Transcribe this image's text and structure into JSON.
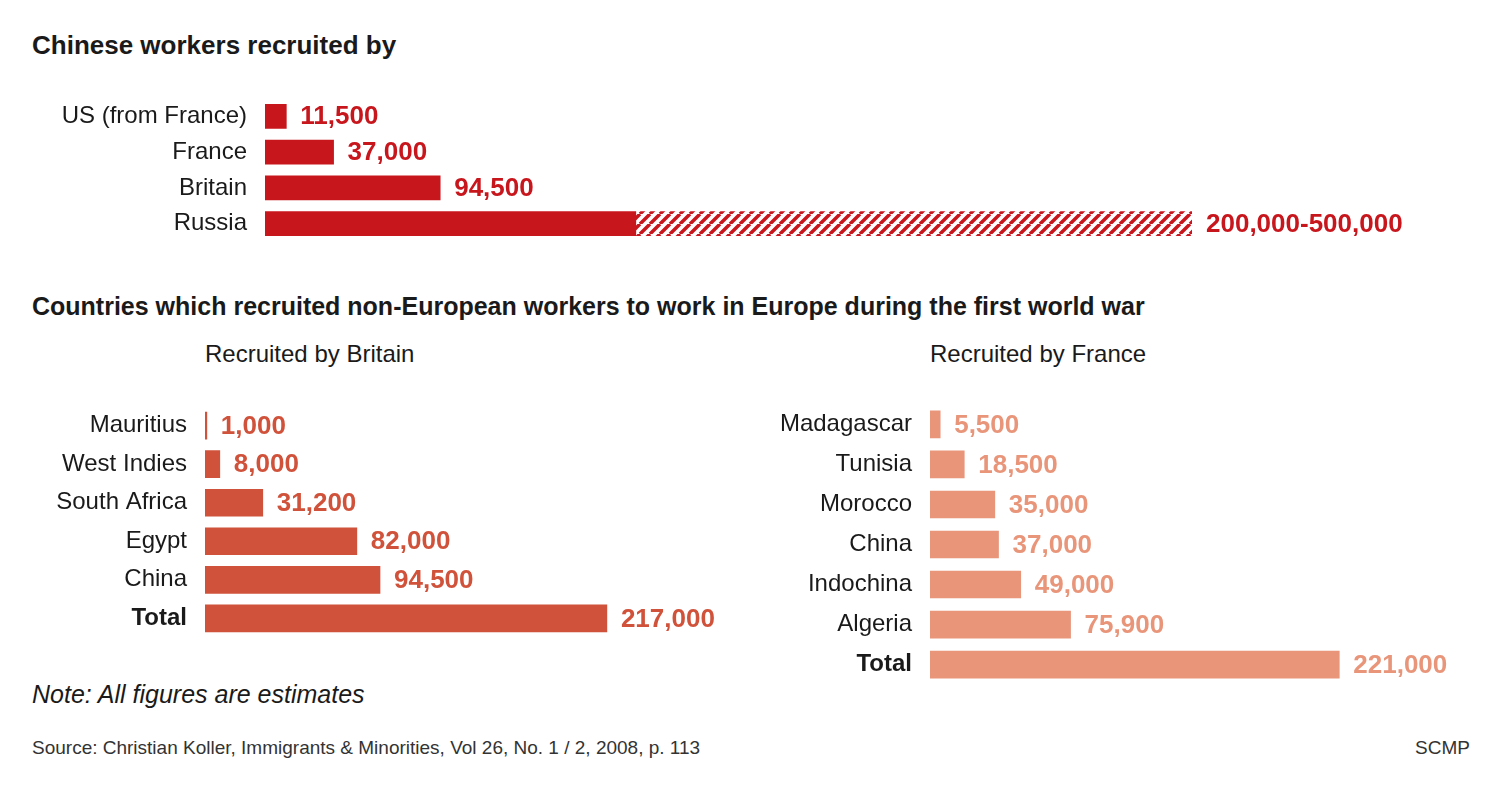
{
  "heading": "Countries which recruited non-European workers to work in Europe during the first world war",
  "note": "Note: All figures are estimates",
  "source": "Source: Christian Koller, Immigrants & Minorities, Vol 26, No. 1 / 2, 2008, p. 113",
  "credit": "SCMP",
  "chart_data": [
    {
      "type": "bar",
      "orientation": "horizontal",
      "title": "Chinese workers recruited by",
      "categories": [
        "US (from France)",
        "France",
        "Britain",
        "Russia"
      ],
      "values": [
        11500,
        37000,
        94500,
        200000
      ],
      "values_high": [
        null,
        null,
        null,
        500000
      ],
      "value_labels": [
        "11,500",
        "37,000",
        "94,500",
        "200,000-500,000"
      ],
      "color": "#c8161d",
      "xlim": [
        0,
        500000
      ],
      "tick_labels": false,
      "grid": false,
      "data_labels": true
    },
    {
      "type": "bar",
      "orientation": "horizontal",
      "title": "Recruited by Britain",
      "categories": [
        "Mauritius",
        "West Indies",
        "South Africa",
        "Egypt",
        "China",
        "Total"
      ],
      "values": [
        1000,
        8000,
        31200,
        82000,
        94500,
        217000
      ],
      "value_labels": [
        "1,000",
        "8,000",
        "31,200",
        "82,000",
        "94,500",
        "217,000"
      ],
      "color": "#d0523a",
      "xlim": [
        0,
        250000
      ],
      "tick_labels": false,
      "grid": false,
      "data_labels": true
    },
    {
      "type": "bar",
      "orientation": "horizontal",
      "title": "Recruited by France",
      "categories": [
        "Madagascar",
        "Tunisia",
        "Morocco",
        "China",
        "Indochina",
        "Algeria",
        "Total"
      ],
      "values": [
        5500,
        18500,
        35000,
        37000,
        49000,
        75900,
        221000
      ],
      "value_labels": [
        "5,500",
        "18,500",
        "35,000",
        "37,000",
        "49,000",
        "75,900",
        "221,000"
      ],
      "color": "#e8957a",
      "xlim": [
        0,
        250000
      ],
      "tick_labels": false,
      "grid": false,
      "data_labels": true
    }
  ]
}
